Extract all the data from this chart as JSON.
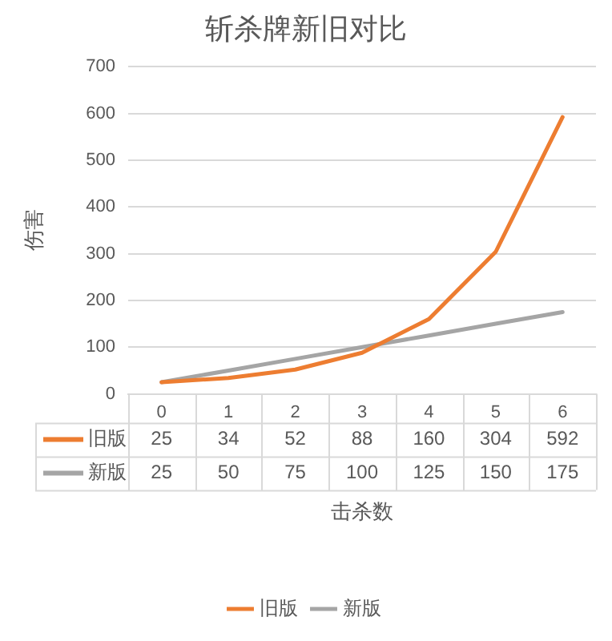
{
  "chart_data": {
    "type": "line",
    "title": "斩杀牌新旧对比",
    "xlabel": "击杀数",
    "ylabel": "伤害",
    "categories": [
      "0",
      "1",
      "2",
      "3",
      "4",
      "5",
      "6"
    ],
    "series": [
      {
        "name": "旧版",
        "color": "#ed7d31",
        "values": [
          25,
          34,
          52,
          88,
          160,
          304,
          592
        ]
      },
      {
        "name": "新版",
        "color": "#a5a5a5",
        "values": [
          25,
          50,
          75,
          100,
          125,
          150,
          175
        ]
      }
    ],
    "ylim": [
      0,
      700
    ],
    "yticks": [
      0,
      100,
      200,
      300,
      400,
      500,
      600,
      700
    ],
    "grid": "y",
    "legend": "bottom",
    "marker": "none",
    "line_style": "solid",
    "data_labels": true
  }
}
